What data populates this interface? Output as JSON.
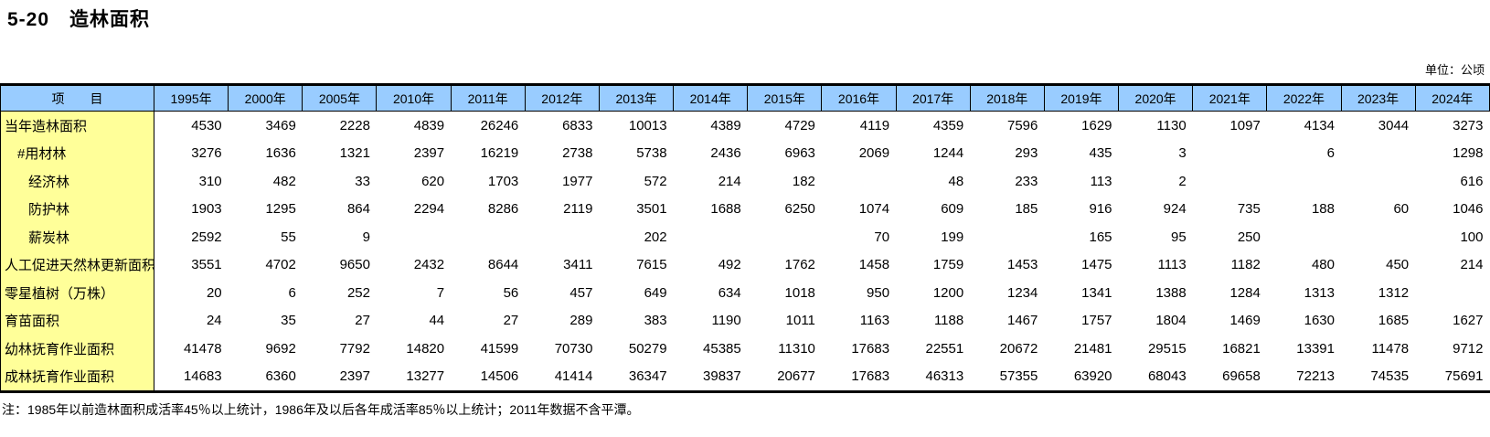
{
  "title": "5-20　造林面积",
  "unit_label": "单位：公顷",
  "note": "注：1985年以前造林面积成活率45％以上统计，1986年及以后各年成活率85％以上统计；2011年数据不含平潭。",
  "colors": {
    "header_bg": "#99CCFF",
    "label_bg": "#FFFF99",
    "border": "#000000"
  },
  "table": {
    "item_header": "项　　目",
    "years": [
      "1995年",
      "2000年",
      "2005年",
      "2010年",
      "2011年",
      "2012年",
      "2013年",
      "2014年",
      "2015年",
      "2016年",
      "2017年",
      "2018年",
      "2019年",
      "2020年",
      "2021年",
      "2022年",
      "2023年",
      "2024年"
    ],
    "rows": [
      {
        "label": "当年造林面积",
        "indent": 0,
        "values": [
          "4530",
          "3469",
          "2228",
          "4839",
          "26246",
          "6833",
          "10013",
          "4389",
          "4729",
          "4119",
          "4359",
          "7596",
          "1629",
          "1130",
          "1097",
          "4134",
          "3044",
          "3273"
        ]
      },
      {
        "label": "#用材林",
        "indent": 1,
        "values": [
          "3276",
          "1636",
          "1321",
          "2397",
          "16219",
          "2738",
          "5738",
          "2436",
          "6963",
          "2069",
          "1244",
          "293",
          "435",
          "3",
          "",
          "6",
          "",
          "1298"
        ]
      },
      {
        "label": "经济林",
        "indent": 2,
        "values": [
          "310",
          "482",
          "33",
          "620",
          "1703",
          "1977",
          "572",
          "214",
          "182",
          "",
          "48",
          "233",
          "113",
          "2",
          "",
          "",
          "",
          "616"
        ]
      },
      {
        "label": "防护林",
        "indent": 2,
        "values": [
          "1903",
          "1295",
          "864",
          "2294",
          "8286",
          "2119",
          "3501",
          "1688",
          "6250",
          "1074",
          "609",
          "185",
          "916",
          "924",
          "735",
          "188",
          "60",
          "1046"
        ]
      },
      {
        "label": "薪炭林",
        "indent": 2,
        "values": [
          "2592",
          "55",
          "9",
          "",
          "",
          "",
          "202",
          "",
          "",
          "70",
          "199",
          "",
          "165",
          "95",
          "250",
          "",
          "",
          "100"
        ]
      },
      {
        "label": "人工促进天然林更新面积",
        "indent": 0,
        "values": [
          "3551",
          "4702",
          "9650",
          "2432",
          "8644",
          "3411",
          "7615",
          "492",
          "1762",
          "1458",
          "1759",
          "1453",
          "1475",
          "1113",
          "1182",
          "480",
          "450",
          "214"
        ]
      },
      {
        "label": "零星植树（万株）",
        "indent": 0,
        "values": [
          "20",
          "6",
          "252",
          "7",
          "56",
          "457",
          "649",
          "634",
          "1018",
          "950",
          "1200",
          "1234",
          "1341",
          "1388",
          "1284",
          "1313",
          "1312",
          ""
        ]
      },
      {
        "label": "育苗面积",
        "indent": 0,
        "values": [
          "24",
          "35",
          "27",
          "44",
          "27",
          "289",
          "383",
          "1190",
          "1011",
          "1163",
          "1188",
          "1467",
          "1757",
          "1804",
          "1469",
          "1630",
          "1685",
          "1627"
        ]
      },
      {
        "label": "幼林抚育作业面积",
        "indent": 0,
        "values": [
          "41478",
          "9692",
          "7792",
          "14820",
          "41599",
          "70730",
          "50279",
          "45385",
          "11310",
          "17683",
          "22551",
          "20672",
          "21481",
          "29515",
          "16821",
          "13391",
          "11478",
          "9712"
        ]
      },
      {
        "label": "成林抚育作业面积",
        "indent": 0,
        "values": [
          "14683",
          "6360",
          "2397",
          "13277",
          "14506",
          "41414",
          "36347",
          "39837",
          "20677",
          "17683",
          "46313",
          "57355",
          "63920",
          "68043",
          "69658",
          "72213",
          "74535",
          "75691"
        ]
      }
    ]
  }
}
